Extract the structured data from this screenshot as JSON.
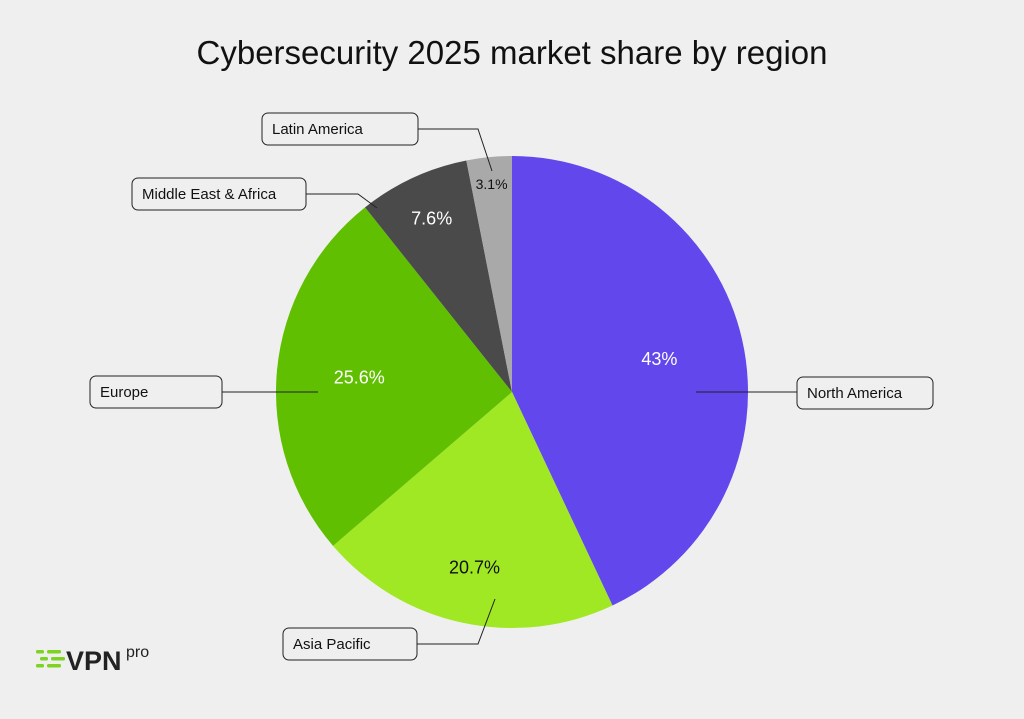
{
  "chart_data": {
    "type": "pie",
    "title": "Cybersecurity 2025 market share by region",
    "slices": [
      {
        "label": "North America",
        "value": 43,
        "display": "43%",
        "color": "#6248ec",
        "text_color": "#ffffff"
      },
      {
        "label": "Asia Pacific",
        "value": 20.7,
        "display": "20.7%",
        "color": "#a0e823",
        "text_color": "#111111"
      },
      {
        "label": "Europe",
        "value": 25.6,
        "display": "25.6%",
        "color": "#5fbf00",
        "text_color": "#ffffff"
      },
      {
        "label": "Middle East & Africa",
        "value": 7.6,
        "display": "7.6%",
        "color": "#4a4a4a",
        "text_color": "#ffffff"
      },
      {
        "label": "Latin America",
        "value": 3.1,
        "display": "3.1%",
        "color": "#a9a9a9",
        "text_color": "#111111"
      }
    ],
    "start": "12 o'clock",
    "direction": "clockwise"
  },
  "brand": {
    "logo_text": "VPN",
    "logo_sup": "pro",
    "accent": "#7ed321",
    "text_color": "#222222"
  }
}
